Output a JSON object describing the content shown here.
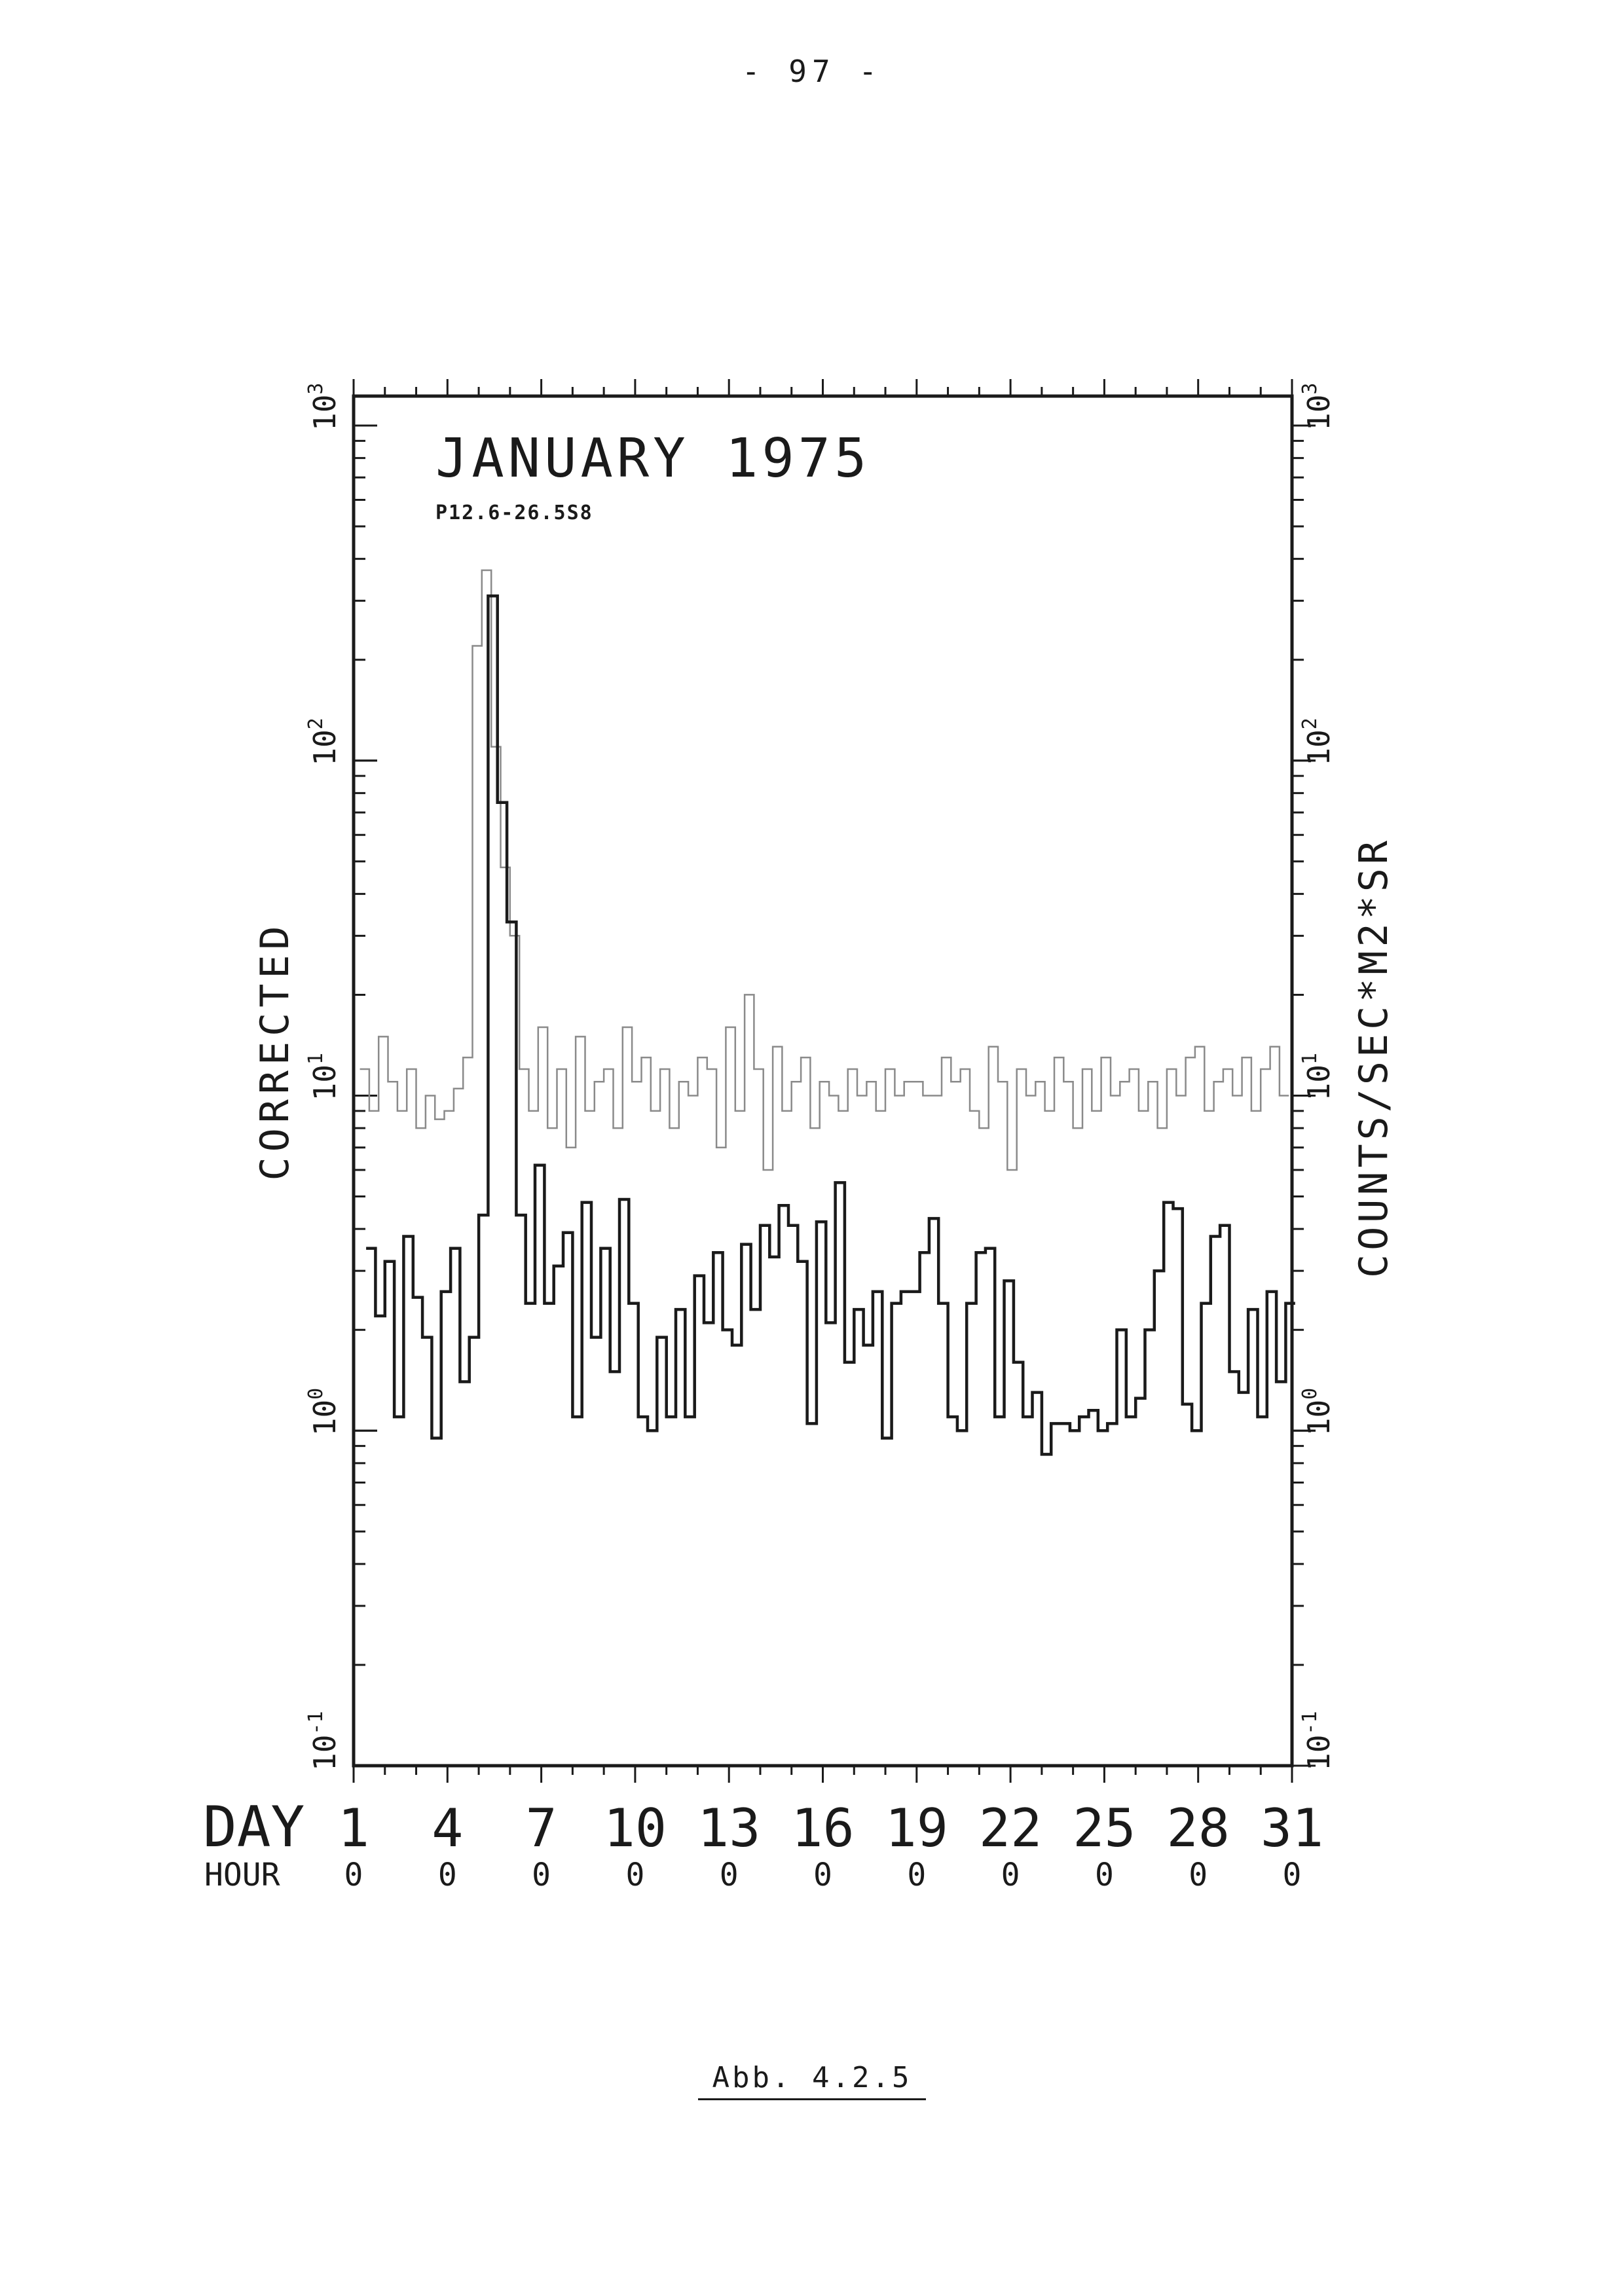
{
  "page_number": "- 97 -",
  "caption": "Abb. 4.2.5",
  "chart_data": {
    "type": "line",
    "chart_style": "step",
    "y_scale": "log",
    "title": "JANUARY 1975",
    "subtitle": "P12.6-26.5S8",
    "ylabel": "CORRECTED",
    "ylabel_right": "COUNTS/SEC*M2*SR",
    "xlim": [
      1,
      31
    ],
    "ylim": [
      0.1,
      1000
    ],
    "grid": false,
    "legend": "none",
    "x_ticks": {
      "row1_label": "DAY",
      "row2_label": "HOUR",
      "days": [
        "1",
        "4",
        "7",
        "10",
        "13",
        "16",
        "19",
        "22",
        "25",
        "28",
        "31"
      ],
      "hours": [
        "0",
        "0",
        "0",
        "0",
        "0",
        "0",
        "0",
        "0",
        "0",
        "0",
        "0"
      ]
    },
    "y_ticks": [
      {
        "value": 0.1,
        "base": "10",
        "exp": "-1"
      },
      {
        "value": 1,
        "base": "10",
        "exp": "0"
      },
      {
        "value": 10,
        "base": "10",
        "exp": "1"
      },
      {
        "value": 100,
        "base": "10",
        "exp": "2"
      },
      {
        "value": 1000,
        "base": "10",
        "exp": "3"
      }
    ],
    "colors": {
      "ink": "#1a1a1a",
      "faint": "#8a8a8a"
    },
    "series": [
      {
        "style": "thin",
        "x": [
          1.2,
          1.5,
          1.8,
          2.1,
          2.4,
          2.7,
          3.0,
          3.3,
          3.6,
          3.9,
          4.2,
          4.5,
          4.8,
          5.1,
          5.4,
          5.7,
          6.0,
          6.3,
          6.6,
          6.9,
          7.2,
          7.5,
          7.8,
          8.1,
          8.4,
          8.7,
          9.0,
          9.3,
          9.6,
          9.9,
          10.2,
          10.5,
          10.8,
          11.1,
          11.4,
          11.7,
          12.0,
          12.3,
          12.6,
          12.9,
          13.2,
          13.5,
          13.8,
          14.1,
          14.4,
          14.7,
          15.0,
          15.3,
          15.6,
          15.9,
          16.2,
          16.5,
          16.8,
          17.1,
          17.4,
          17.7,
          18.0,
          18.3,
          18.6,
          18.9,
          19.2,
          19.5,
          19.8,
          20.1,
          20.4,
          20.7,
          21.0,
          21.3,
          21.6,
          21.9,
          22.2,
          22.5,
          22.8,
          23.1,
          23.4,
          23.7,
          24.0,
          24.3,
          24.6,
          24.9,
          25.2,
          25.5,
          25.8,
          26.1,
          26.4,
          26.7,
          27.0,
          27.3,
          27.6,
          27.9,
          28.2,
          28.5,
          28.8,
          29.1,
          29.4,
          29.7,
          30.0,
          30.3,
          30.6
        ],
        "y": [
          12,
          9,
          15,
          11,
          9,
          12,
          8,
          10,
          8.5,
          9,
          10.5,
          13,
          220,
          370,
          110,
          48,
          30,
          12,
          9,
          16,
          8,
          12,
          7,
          15,
          9,
          11,
          12,
          8,
          16,
          11,
          13,
          9,
          12,
          8,
          11,
          10,
          13,
          12,
          7,
          16,
          9,
          20,
          12,
          6,
          14,
          9,
          11,
          13,
          8,
          11,
          10,
          9,
          12,
          10,
          11,
          9,
          12,
          10,
          11,
          11,
          10,
          10,
          13,
          11,
          12,
          9,
          8,
          14,
          11,
          6,
          12,
          10,
          11,
          9,
          13,
          11,
          8,
          12,
          9,
          13,
          10,
          11,
          12,
          9,
          11,
          8,
          12,
          10,
          13,
          14,
          9,
          11,
          12,
          10,
          13,
          9,
          12,
          14,
          10
        ]
      },
      {
        "style": "thick",
        "x": [
          1.4,
          1.7,
          2.0,
          2.3,
          2.6,
          2.9,
          3.2,
          3.5,
          3.8,
          4.1,
          4.4,
          4.7,
          5.0,
          5.3,
          5.6,
          5.9,
          6.2,
          6.5,
          6.8,
          7.1,
          7.4,
          7.7,
          8.0,
          8.3,
          8.6,
          8.9,
          9.2,
          9.5,
          9.8,
          10.1,
          10.4,
          10.7,
          11.0,
          11.3,
          11.6,
          11.9,
          12.2,
          12.5,
          12.8,
          13.1,
          13.4,
          13.7,
          14.0,
          14.3,
          14.6,
          14.9,
          15.2,
          15.5,
          15.8,
          16.1,
          16.4,
          16.7,
          17.0,
          17.3,
          17.6,
          17.9,
          18.2,
          18.5,
          18.8,
          19.1,
          19.4,
          19.7,
          20.0,
          20.3,
          20.6,
          20.9,
          21.2,
          21.5,
          21.8,
          22.1,
          22.4,
          22.7,
          23.0,
          23.3,
          23.6,
          23.9,
          24.2,
          24.5,
          24.8,
          25.1,
          25.4,
          25.7,
          26.0,
          26.3,
          26.6,
          26.9,
          27.2,
          27.5,
          27.8,
          28.1,
          28.4,
          28.7,
          29.0,
          29.3,
          29.6,
          29.9,
          30.2,
          30.5,
          30.8
        ],
        "y": [
          3.5,
          2.2,
          3.2,
          1.1,
          3.8,
          2.5,
          1.9,
          0.95,
          2.6,
          3.5,
          1.4,
          1.9,
          4.4,
          310,
          75,
          33,
          4.4,
          2.4,
          6.2,
          2.4,
          3.1,
          3.9,
          1.1,
          4.8,
          1.9,
          3.5,
          1.5,
          4.9,
          2.4,
          1.1,
          1.0,
          1.9,
          1.1,
          2.3,
          1.1,
          2.9,
          2.1,
          3.4,
          2.0,
          1.8,
          3.6,
          2.3,
          4.1,
          3.3,
          4.7,
          4.1,
          3.2,
          1.05,
          4.2,
          2.1,
          5.5,
          1.6,
          2.3,
          1.8,
          2.6,
          0.95,
          2.4,
          2.6,
          2.6,
          3.4,
          4.3,
          2.4,
          1.1,
          1.0,
          2.4,
          3.4,
          3.5,
          1.1,
          2.8,
          1.6,
          1.1,
          1.3,
          0.85,
          1.05,
          1.05,
          1.0,
          1.1,
          1.15,
          1.0,
          1.05,
          2.0,
          1.1,
          1.25,
          2.0,
          3.0,
          4.8,
          4.6,
          1.2,
          1.0,
          2.4,
          3.8,
          4.1,
          1.5,
          1.3,
          2.3,
          1.1,
          2.6,
          1.4,
          2.4
        ]
      }
    ]
  }
}
